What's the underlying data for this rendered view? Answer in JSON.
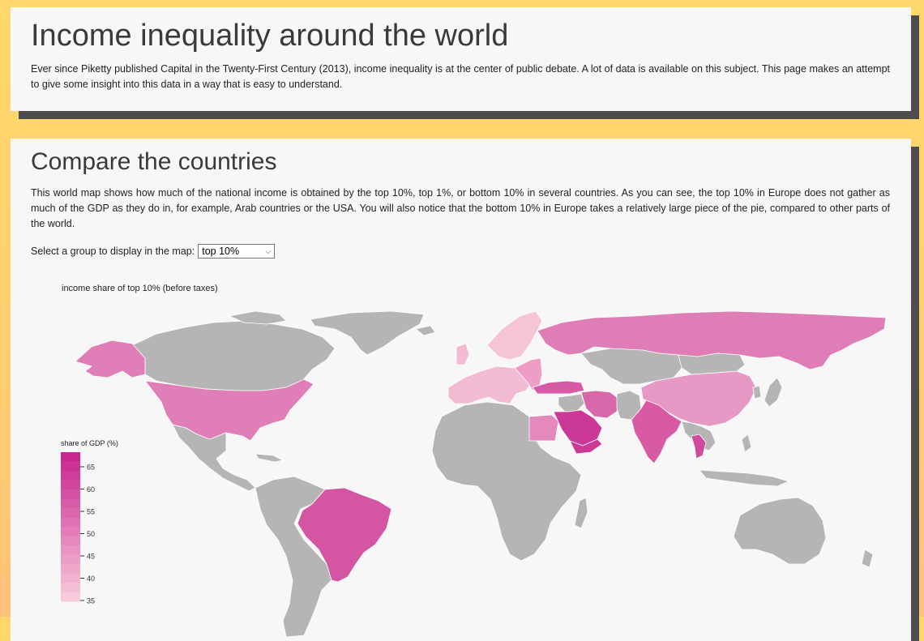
{
  "intro": {
    "title": "Income inequality around the world",
    "text": "Ever since Piketty published Capital in the Twenty-First Century (2013), income inequality is at the center of public debate. A lot of data is available on this subject. This page makes an attempt to give some insight into this data in a way that is easy to understand."
  },
  "compare": {
    "title": "Compare the countries",
    "text": "This world map shows how much of the national income is obtained by the top 10%, top 1%, or bottom 10% in several countries. As you can see, the top 10% in Europe does not gather as much of the GDP as they do in, for example, Arab countries or the USA. You will also notice that the bottom 10% in Europe takes a relatively large piece of the pie, compared to other parts of the world.",
    "select_label": "Select a group to display in the map:",
    "select_value": "top 10%"
  },
  "map": {
    "title": "income share of top 10% (before taxes)",
    "no_data_color": "#b5b5b5",
    "legend": {
      "title": "share of GDP (%)",
      "ticks": [
        "65",
        "60",
        "55",
        "50",
        "45",
        "40",
        "35"
      ],
      "color_high": "#c9268f",
      "color_low": "#f7c9da"
    },
    "colors": {
      "usa": "#e07fb7",
      "alaska": "#e07fb7",
      "brazil": "#d456a3",
      "russia": "#df7db6",
      "china": "#e699c4",
      "india": "#d85aa5",
      "saudi-arabia": "#cc3896",
      "turkey": "#d65aa6",
      "iran": "#d868aa",
      "egypt": "#e589bd",
      "scandinavia": "#f5c5d5",
      "europe-west": "#f2bbd1",
      "europe-east": "#ee9ec6",
      "thailand": "#d04a9d"
    }
  }
}
